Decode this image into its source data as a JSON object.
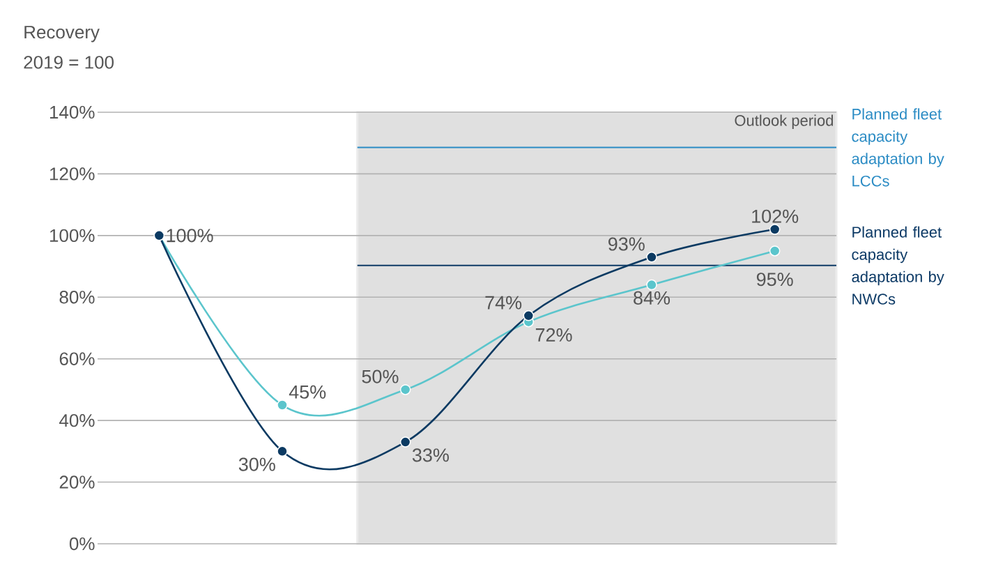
{
  "chart_data": {
    "type": "line",
    "title": "Recovery",
    "subtitle": "2019 = 100",
    "categories": [
      null,
      null,
      null,
      null,
      null,
      null
    ],
    "series": [
      {
        "color": "#5bc5cc",
        "values": [
          100,
          45,
          50,
          72,
          84,
          95
        ],
        "value_labels": [
          "100%",
          "45%",
          "50%",
          "72%",
          "84%",
          "95%"
        ]
      },
      {
        "color": "#0b3a62",
        "values": [
          100,
          30,
          33,
          74,
          93,
          102
        ],
        "value_labels": [
          null,
          "30%",
          "33%",
          "74%",
          "93%",
          "102%"
        ]
      }
    ],
    "ylim": [
      0,
      140
    ],
    "yticks": [
      {
        "value": 0,
        "label": "0%"
      },
      {
        "value": 20,
        "label": "20%"
      },
      {
        "value": 40,
        "label": "40%"
      },
      {
        "value": 60,
        "label": "60%"
      },
      {
        "value": 80,
        "label": "80%"
      },
      {
        "value": 100,
        "label": "100%"
      },
      {
        "value": 120,
        "label": "120%"
      },
      {
        "value": 140,
        "label": "140%"
      }
    ],
    "grid": "y",
    "marker": "circle",
    "tick_labels": "y",
    "annotations": [
      "Outlook period"
    ],
    "ref_lines": [
      {
        "axis": "y",
        "value": 128.6,
        "label": "Planned fleet capacity adaptation by LCCs",
        "color": "#2a8bc4"
      },
      {
        "axis": "y",
        "value": 90.3,
        "label": "Planned fleet capacity adaptation by NWCs",
        "color": "#0d3a66"
      }
    ]
  }
}
